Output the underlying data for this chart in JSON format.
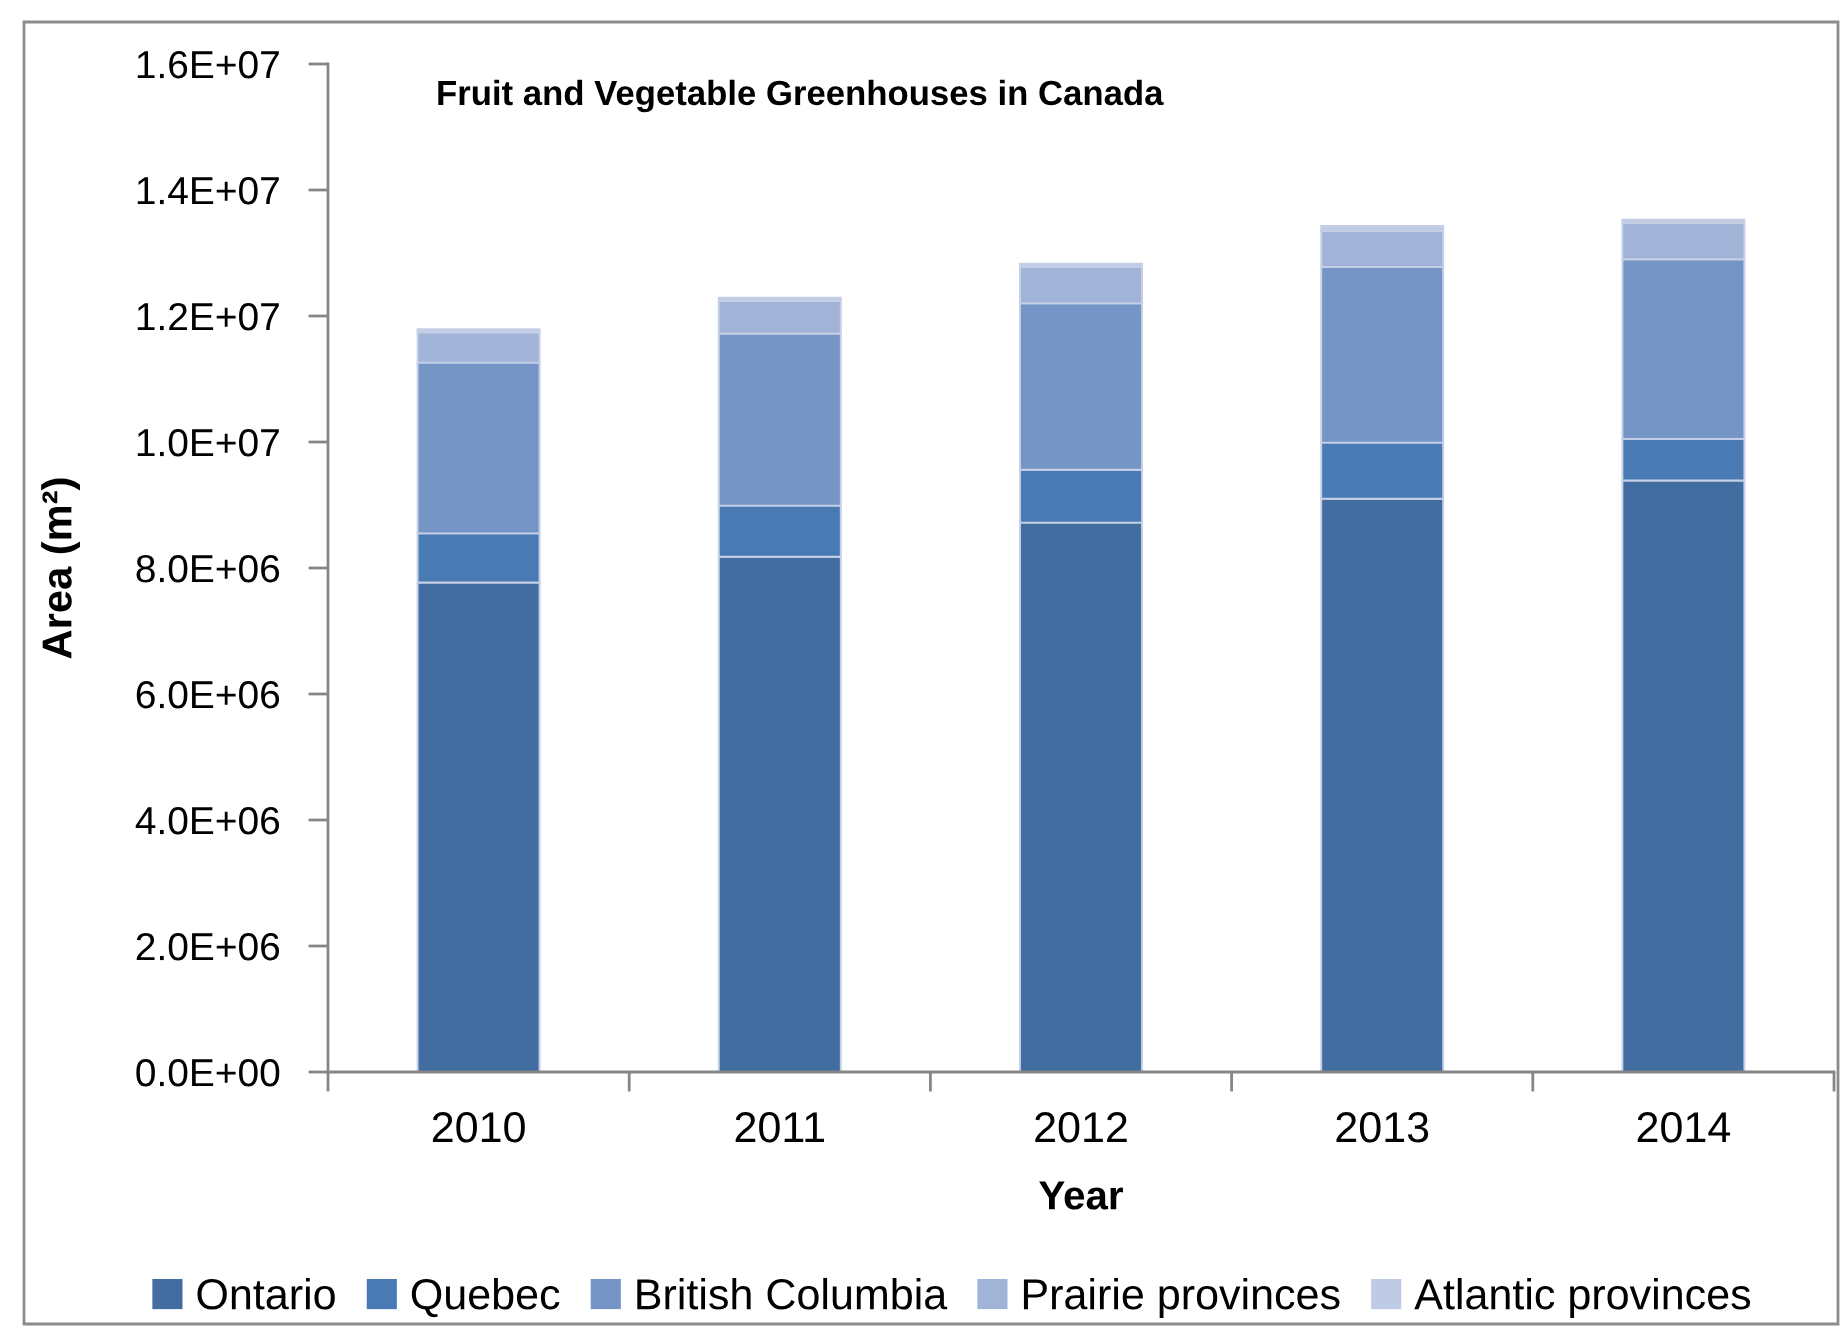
{
  "chart_data": {
    "type": "bar",
    "title": "Fruit and Vegetable Greenhouses in Canada",
    "xlabel": "Year",
    "ylabel": "Area (m²)",
    "categories": [
      "2010",
      "2011",
      "2012",
      "2013",
      "2014"
    ],
    "stacked": true,
    "series": [
      {
        "name": "Ontario",
        "color": "#426da0",
        "values": [
          7770000,
          8180000,
          8720000,
          9100000,
          9390000
        ]
      },
      {
        "name": "Quebec",
        "color": "#4a7ab4",
        "values": [
          780000,
          810000,
          840000,
          890000,
          660000
        ]
      },
      {
        "name": "British Columbia",
        "color": "#7595c7",
        "values": [
          2710000,
          2730000,
          2640000,
          2790000,
          2850000
        ]
      },
      {
        "name": "Prairie provinces",
        "color": "#a1b3d6",
        "values": [
          480000,
          520000,
          580000,
          570000,
          580000
        ]
      },
      {
        "name": "Atlantic provinces",
        "color": "#bfcbe4",
        "values": [
          50000,
          50000,
          50000,
          80000,
          50000
        ]
      }
    ],
    "ylim": [
      0,
      16000000
    ],
    "yticks": [
      {
        "value": 0,
        "label": "0.0E+00"
      },
      {
        "value": 2000000,
        "label": "2.0E+06"
      },
      {
        "value": 4000000,
        "label": "4.0E+06"
      },
      {
        "value": 6000000,
        "label": "6.0E+06"
      },
      {
        "value": 8000000,
        "label": "8.0E+06"
      },
      {
        "value": 10000000,
        "label": "1.0E+07"
      },
      {
        "value": 12000000,
        "label": "1.2E+07"
      },
      {
        "value": 14000000,
        "label": "1.4E+07"
      },
      {
        "value": 16000000,
        "label": "1.6E+07"
      }
    ],
    "grid": false,
    "legend": "bottom"
  }
}
